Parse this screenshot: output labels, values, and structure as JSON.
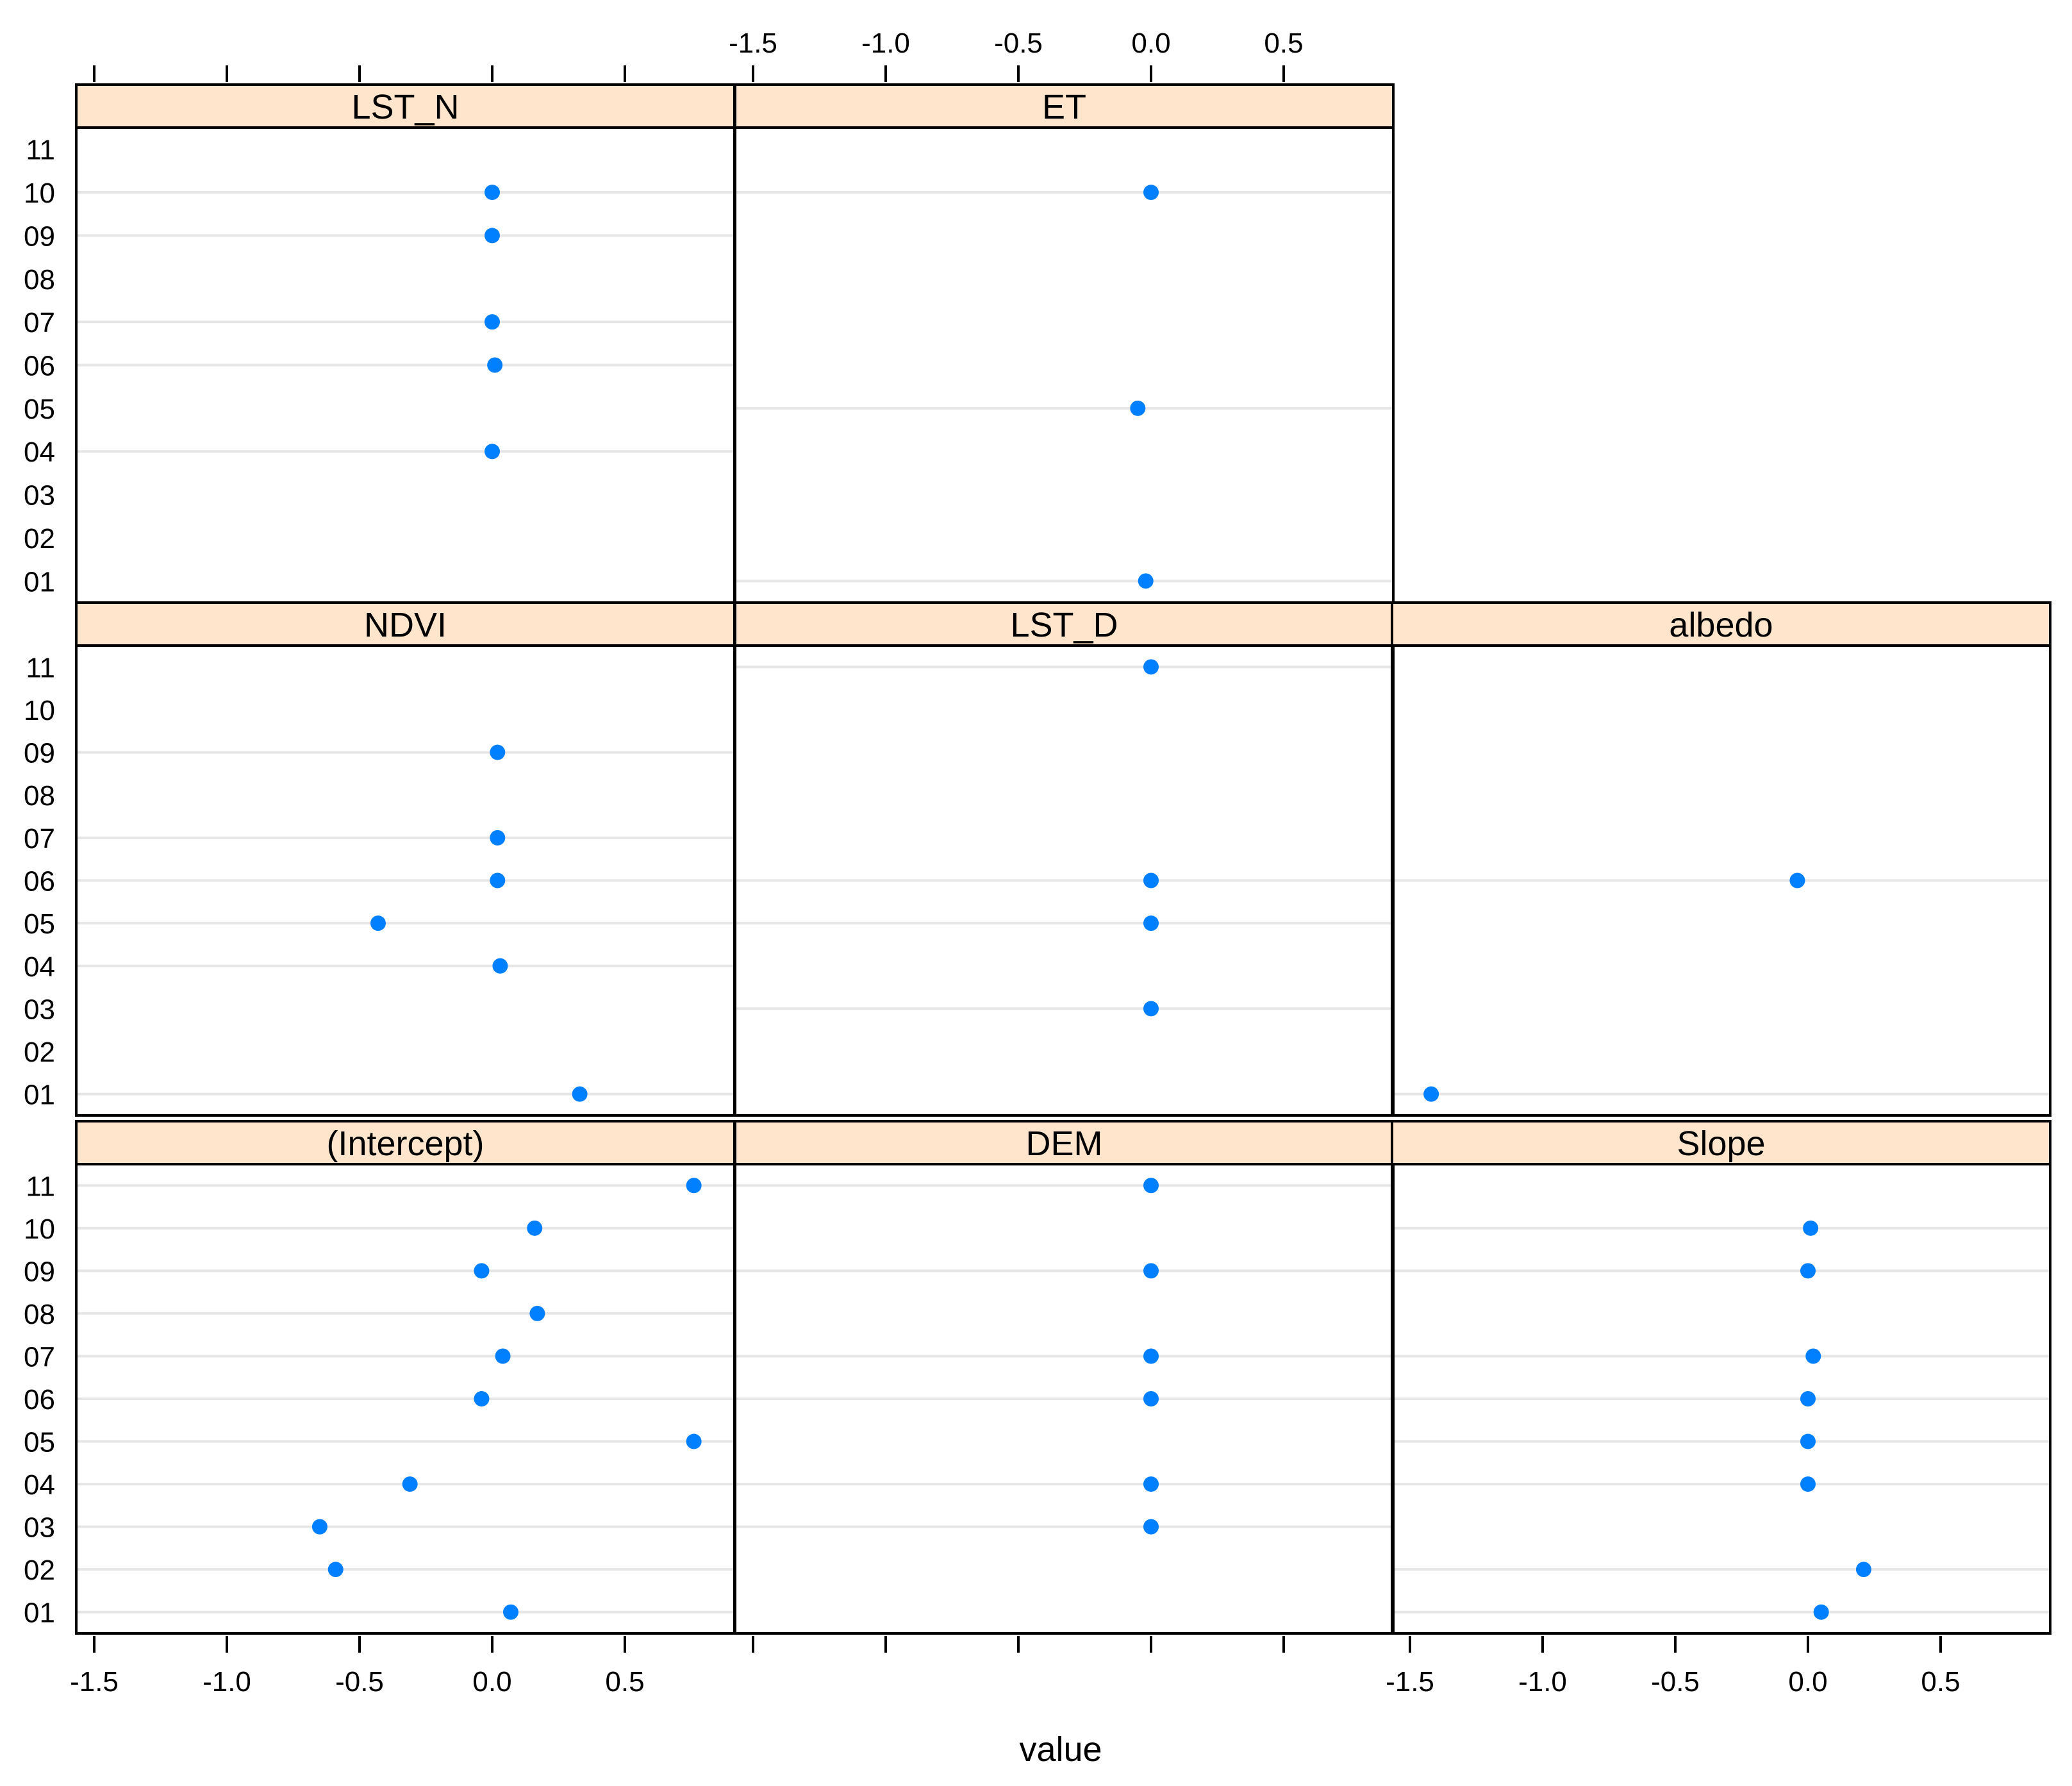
{
  "chart_data": {
    "type": "scatter",
    "subtype": "lattice dot plot",
    "xlabel": "value",
    "ylabel": "",
    "xlim": [
      -1.6,
      0.9
    ],
    "x_ticks": [
      -1.5,
      -1.0,
      -0.5,
      0.0,
      0.5
    ],
    "x_tick_labels": [
      "-1.5",
      "-1.0",
      "-0.5",
      "0.0",
      "0.5"
    ],
    "categories": [
      "01",
      "02",
      "03",
      "04",
      "05",
      "06",
      "07",
      "08",
      "09",
      "10",
      "11"
    ],
    "grid": "horizontal lines at categories with data",
    "strip_color": "#ffe5cc",
    "point_color": "#0080ff",
    "panels": [
      {
        "name": "(Intercept)",
        "row": 0,
        "col": 0,
        "points": {
          "01": 0.07,
          "02": -0.59,
          "03": -0.65,
          "04": -0.31,
          "05": 0.76,
          "06": -0.04,
          "07": 0.04,
          "08": 0.17,
          "09": -0.04,
          "10": 0.16,
          "11": 0.76
        }
      },
      {
        "name": "DEM",
        "row": 0,
        "col": 1,
        "points": {
          "03": 0.0,
          "04": 0.0,
          "06": 0.0,
          "07": 0.0,
          "09": 0.0,
          "11": 0.0
        }
      },
      {
        "name": "Slope",
        "row": 0,
        "col": 2,
        "points": {
          "01": 0.05,
          "02": 0.21,
          "04": 0.0,
          "05": 0.0,
          "06": 0.0,
          "07": 0.02,
          "09": 0.0,
          "10": 0.01
        }
      },
      {
        "name": "NDVI",
        "row": 1,
        "col": 0,
        "points": {
          "01": 0.33,
          "04": 0.03,
          "05": -0.43,
          "06": 0.02,
          "07": 0.02,
          "09": 0.02
        }
      },
      {
        "name": "LST_D",
        "row": 1,
        "col": 1,
        "points": {
          "03": 0.0,
          "05": 0.0,
          "06": 0.0,
          "11": 0.0
        }
      },
      {
        "name": "albedo",
        "row": 1,
        "col": 2,
        "points": {
          "01": -1.42,
          "06": -0.04
        }
      },
      {
        "name": "LST_N",
        "row": 2,
        "col": 0,
        "points": {
          "04": 0.0,
          "06": 0.01,
          "07": 0.0,
          "09": 0.0,
          "10": 0.0
        }
      },
      {
        "name": "ET",
        "row": 2,
        "col": 1,
        "points": {
          "01": -0.02,
          "05": -0.05,
          "10": 0.0
        }
      }
    ]
  }
}
